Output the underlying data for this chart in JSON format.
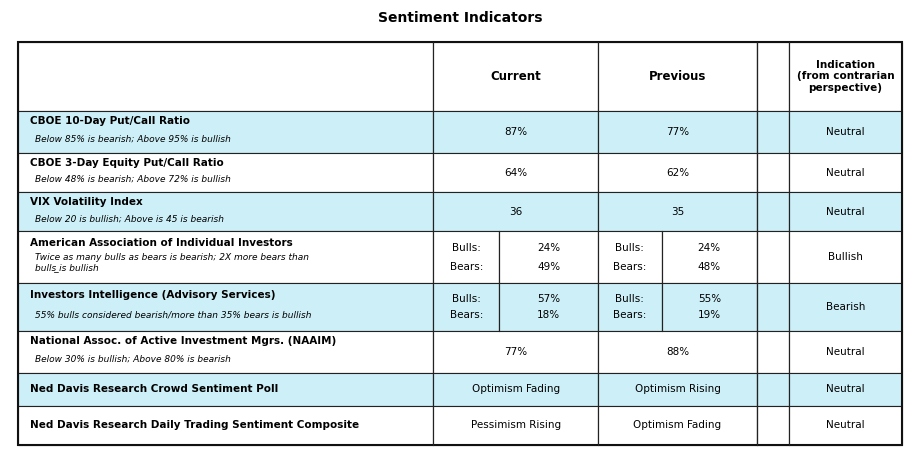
{
  "title": "Sentiment Indicators",
  "header_bg": "#ffffff",
  "row_bg_teal": "#cdf0f8",
  "row_bg_white": "#ffffff",
  "border_color": "#222222",
  "text_color": "#000000",
  "fig_bg": "#ffffff",
  "rows": [
    {
      "label_bold": "CBOE 10-Day Put/Call Ratio",
      "label_italic": "Below 85% is bearish; Above 95% is bullish",
      "current": "87%",
      "previous": "77%",
      "indication": "Neutral",
      "bg": "#cdf0f8",
      "split": false
    },
    {
      "label_bold": "CBOE 3-Day Equity Put/Call Ratio",
      "label_italic": "Below 48% is bearish; Above 72% is bullish",
      "current": "64%",
      "previous": "62%",
      "indication": "Neutral",
      "bg": "#ffffff",
      "split": false
    },
    {
      "label_bold": "VIX Volatility Index",
      "label_italic": "Below 20 is bullish; Above is 45 is bearish",
      "current": "36",
      "previous": "35",
      "indication": "Neutral",
      "bg": "#cdf0f8",
      "split": false
    },
    {
      "label_bold": "American Association of Individual Investors",
      "label_italic": "Twice as many bulls as bears is bearish; 2X more bears than\nbulls ̲is bullish",
      "current_bulls": "24%",
      "current_bears": "49%",
      "previous_bulls": "24%",
      "previous_bears": "48%",
      "indication": "Bullish",
      "bg": "#ffffff",
      "split": true
    },
    {
      "label_bold": "Investors Intelligence (Advisory Services)",
      "label_italic": "55% bulls considered bearish/more than 35% bears is bullish",
      "current_bulls": "57%",
      "current_bears": "18%",
      "previous_bulls": "55%",
      "previous_bears": "19%",
      "indication": "Bearish",
      "bg": "#cdf0f8",
      "split": true
    },
    {
      "label_bold": "National Assoc. of Active Investment Mgrs. (NAAIM)",
      "label_italic": "Below 30% is bullish; Above 80% is bearish",
      "current": "77%",
      "previous": "88%",
      "indication": "Neutral",
      "bg": "#ffffff",
      "split": false
    },
    {
      "label_bold": "Ned Davis Research Crowd Sentiment Poll",
      "label_italic": "",
      "current": "Optimism Fading",
      "previous": "Optimism Rising",
      "indication": "Neutral",
      "bg": "#cdf0f8",
      "split": false
    },
    {
      "label_bold": "Ned Davis Research Daily Trading Sentiment Composite",
      "label_italic": "",
      "current": "Pessimism Rising",
      "previous": "Optimism Fading",
      "indication": "Neutral",
      "bg": "#ffffff",
      "split": false
    }
  ]
}
